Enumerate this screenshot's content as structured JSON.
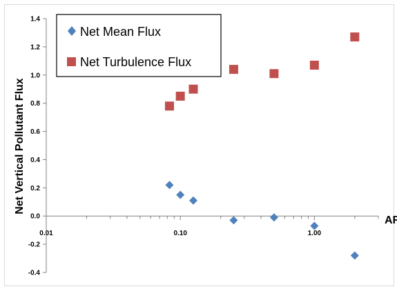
{
  "chart_data": {
    "type": "scatter",
    "title": "",
    "xlabel": "AR",
    "ylabel": "Net Vertical Pollutant Flux",
    "xscale": "log",
    "xlim": [
      0.01,
      3.0
    ],
    "ylim": [
      -0.4,
      1.4
    ],
    "x_tick_labels": [
      {
        "value": 0.01,
        "label": "0.01"
      },
      {
        "value": 0.1,
        "label": "0.10"
      },
      {
        "value": 1.0,
        "label": "1.00"
      }
    ],
    "y_tick_labels": [
      {
        "value": -0.4,
        "label": "-0.4"
      },
      {
        "value": -0.2,
        "label": "-0.2"
      },
      {
        "value": 0.0,
        "label": "0.0"
      },
      {
        "value": 0.2,
        "label": "0.2"
      },
      {
        "value": 0.4,
        "label": "0.4"
      },
      {
        "value": 0.6,
        "label": "0.6"
      },
      {
        "value": 0.8,
        "label": "0.8"
      },
      {
        "value": 1.0,
        "label": "1.0"
      },
      {
        "value": 1.2,
        "label": "1.2"
      },
      {
        "value": 1.4,
        "label": "1.4"
      }
    ],
    "grid": false,
    "legend_position": "top-left",
    "series": [
      {
        "name": "Net Mean Flux",
        "marker": "diamond",
        "color": "#4f81bd",
        "points": [
          {
            "x": 0.083,
            "y": 0.22
          },
          {
            "x": 0.1,
            "y": 0.15
          },
          {
            "x": 0.125,
            "y": 0.11
          },
          {
            "x": 0.25,
            "y": -0.03
          },
          {
            "x": 0.5,
            "y": -0.01
          },
          {
            "x": 1.0,
            "y": -0.07
          },
          {
            "x": 2.0,
            "y": -0.28
          }
        ]
      },
      {
        "name": "Net Turbulence Flux",
        "marker": "square",
        "color": "#c0504d",
        "points": [
          {
            "x": 0.083,
            "y": 0.78
          },
          {
            "x": 0.1,
            "y": 0.85
          },
          {
            "x": 0.125,
            "y": 0.9
          },
          {
            "x": 0.25,
            "y": 1.04
          },
          {
            "x": 0.5,
            "y": 1.01
          },
          {
            "x": 1.0,
            "y": 1.07
          },
          {
            "x": 2.0,
            "y": 1.27
          }
        ]
      }
    ]
  }
}
